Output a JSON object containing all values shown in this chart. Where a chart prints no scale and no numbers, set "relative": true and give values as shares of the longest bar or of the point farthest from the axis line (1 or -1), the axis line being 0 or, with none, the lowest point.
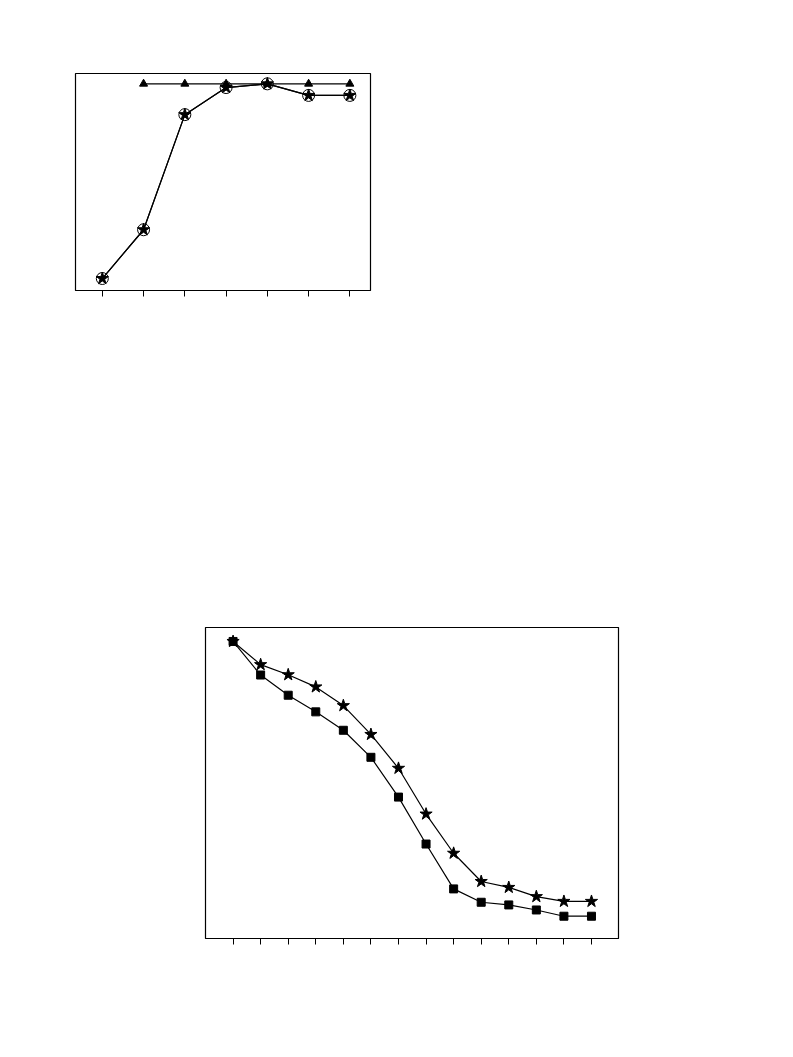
{
  "chart_data": [
    {
      "type": "line",
      "relative": true,
      "categories": [
        null,
        null,
        null,
        null,
        null,
        null,
        null
      ],
      "grid": false,
      "series": [
        {
          "color": "#000000",
          "marker": "star",
          "values": [
            0.058,
            0.294,
            0.851,
            0.982,
            1,
            0.944,
            0.944
          ]
        },
        {
          "color": "#000000",
          "marker": "circle",
          "values": [
            0.058,
            0.294,
            0.851,
            0.982,
            1,
            0.944,
            0.944
          ]
        },
        {
          "color": "#000000",
          "marker": "triangle",
          "values": [
            null,
            1,
            1,
            1,
            1,
            1,
            1
          ]
        }
      ]
    },
    {
      "type": "line",
      "relative": true,
      "categories": [
        null,
        null,
        null,
        null,
        null,
        null,
        null,
        null,
        null,
        null,
        null,
        null,
        null,
        null
      ],
      "grid": false,
      "series": [
        {
          "color": "#000000",
          "marker": "star",
          "values": [
            1,
            0.922,
            0.888,
            0.847,
            0.784,
            0.687,
            0.573,
            0.419,
            0.287,
            0.192,
            0.172,
            0.141,
            0.125,
            0.125
          ]
        },
        {
          "color": "#000000",
          "marker": "square",
          "values": [
            1,
            0.887,
            0.819,
            0.763,
            0.701,
            0.61,
            0.476,
            0.318,
            0.167,
            0.122,
            0.113,
            0.096,
            0.075,
            0.075
          ]
        }
      ]
    }
  ]
}
